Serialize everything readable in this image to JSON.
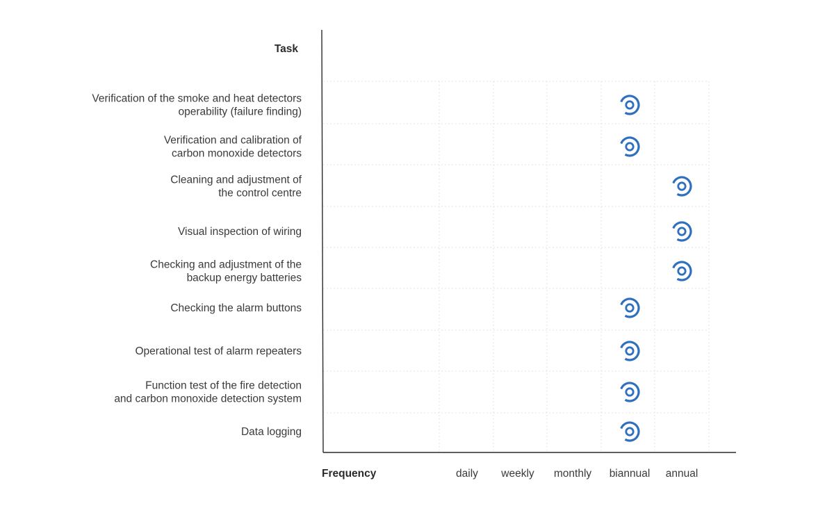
{
  "chart_data": {
    "type": "scatter",
    "ylabel": "Task",
    "xlabel": "Frequency",
    "categories": [
      "daily",
      "weekly",
      "monthly",
      "biannual",
      "annual"
    ],
    "tasks": [
      [
        "Verification of the smoke and heat detectors",
        "operability (failure finding)"
      ],
      [
        "Verification and calibration of",
        "carbon monoxide detectors"
      ],
      [
        "Cleaning and adjustment of",
        "the control centre"
      ],
      [
        "Visual inspection of wiring"
      ],
      [
        "Checking and adjustment of the",
        "backup energy batteries"
      ],
      [
        "Checking the alarm buttons"
      ],
      [
        "Operational test of alarm repeaters"
      ],
      [
        "Function test of the fire detection",
        "and carbon monoxide detection system"
      ],
      [
        "Data logging"
      ]
    ],
    "points": [
      {
        "task": 0,
        "frequency": "biannual"
      },
      {
        "task": 1,
        "frequency": "biannual"
      },
      {
        "task": 2,
        "frequency": "annual"
      },
      {
        "task": 3,
        "frequency": "annual"
      },
      {
        "task": 4,
        "frequency": "annual"
      },
      {
        "task": 5,
        "frequency": "biannual"
      },
      {
        "task": 6,
        "frequency": "biannual"
      },
      {
        "task": 7,
        "frequency": "biannual"
      },
      {
        "task": 8,
        "frequency": "biannual"
      }
    ],
    "grid": true,
    "marker_color": "#2f6fbf"
  }
}
